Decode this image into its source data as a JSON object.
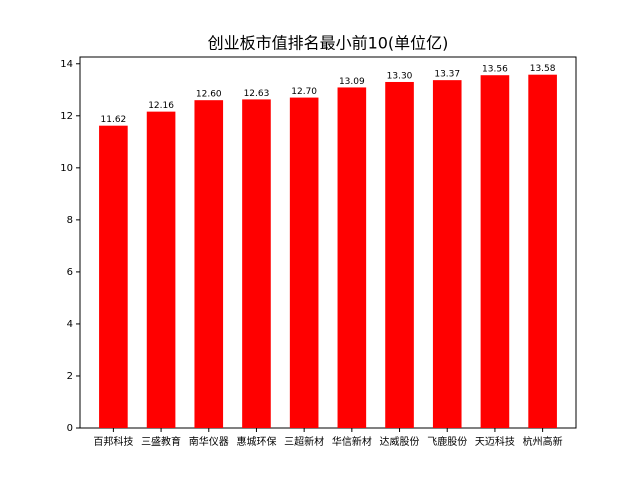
{
  "chart_data": {
    "type": "bar",
    "title": "创业板市值排名最小前10(单位亿)",
    "categories": [
      "百邦科技",
      "三盛教育",
      "南华仪器",
      "惠城环保",
      "三超新材",
      "华信新材",
      "达威股份",
      "飞鹿股份",
      "天迈科技",
      "杭州高新"
    ],
    "values": [
      11.62,
      12.16,
      12.6,
      12.63,
      12.7,
      13.09,
      13.3,
      13.37,
      13.56,
      13.58
    ],
    "value_labels": [
      "11.62",
      "12.16",
      "12.60",
      "12.63",
      "12.70",
      "13.09",
      "13.30",
      "13.37",
      "13.56",
      "13.58"
    ],
    "color": "#ff0000",
    "ylim": [
      0,
      14.26
    ],
    "yticks": [
      0,
      2,
      4,
      6,
      8,
      10,
      12,
      14
    ],
    "grid": false
  }
}
